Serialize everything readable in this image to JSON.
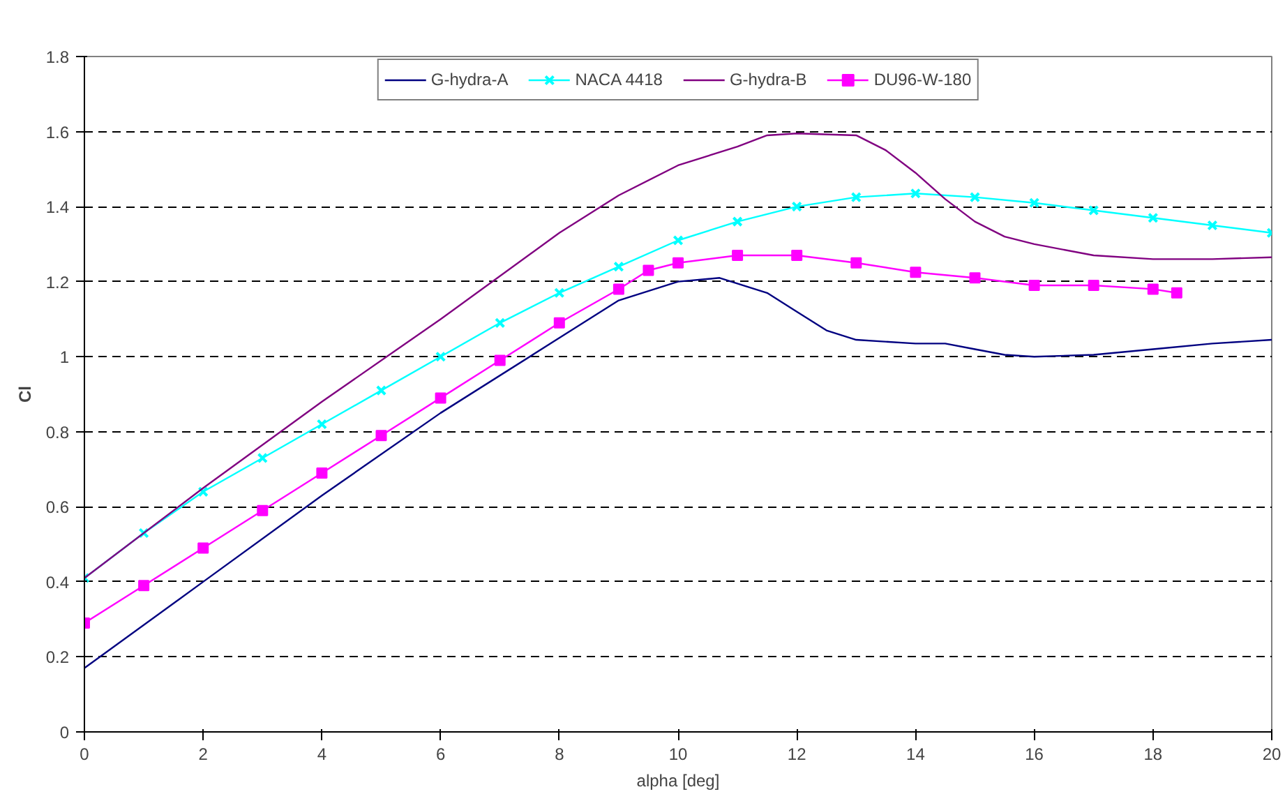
{
  "chart_data": {
    "type": "line",
    "xlabel": "alpha [deg]",
    "ylabel": "Cl",
    "xlim": [
      0,
      20
    ],
    "xticks": [
      0,
      2,
      4,
      6,
      8,
      10,
      12,
      14,
      16,
      18,
      20
    ],
    "ylim": [
      0,
      1.8
    ],
    "yticks": [
      0,
      0.2,
      0.4,
      0.6,
      0.8,
      1,
      1.2,
      1.4,
      1.6,
      1.8
    ],
    "grid": "y",
    "legend": "top",
    "series": [
      {
        "name": "G-hydra-A",
        "color": "#000080",
        "marker": "none",
        "x": [
          0,
          2,
          4,
          6,
          8,
          9,
          10,
          10.7,
          11.5,
          12,
          12.5,
          13,
          14,
          14.5,
          15,
          15.5,
          16,
          17,
          18,
          19,
          20
        ],
        "values": [
          0.17,
          0.4,
          0.63,
          0.85,
          1.05,
          1.15,
          1.2,
          1.21,
          1.17,
          1.12,
          1.07,
          1.045,
          1.035,
          1.035,
          1.02,
          1.005,
          1.0,
          1.005,
          1.02,
          1.035,
          1.045
        ]
      },
      {
        "name": "NACA 4418",
        "color": "#00ffff",
        "marker": "cross",
        "x": [
          0,
          1,
          2,
          3,
          4,
          5,
          6,
          7,
          8,
          9,
          10,
          11,
          12,
          13,
          14,
          15,
          16,
          17,
          18,
          19,
          20
        ],
        "values": [
          0.41,
          0.53,
          0.64,
          0.73,
          0.82,
          0.91,
          1.0,
          1.09,
          1.17,
          1.24,
          1.31,
          1.36,
          1.4,
          1.425,
          1.435,
          1.425,
          1.41,
          1.39,
          1.37,
          1.35,
          1.33
        ]
      },
      {
        "name": "G-hydra-B",
        "color": "#800080",
        "marker": "none",
        "x": [
          0,
          2,
          4,
          6,
          8,
          9,
          10,
          11,
          11.5,
          12,
          13,
          13.5,
          14,
          14.5,
          15,
          15.5,
          16,
          17,
          18,
          19,
          20
        ],
        "values": [
          0.41,
          0.65,
          0.88,
          1.1,
          1.33,
          1.43,
          1.51,
          1.56,
          1.59,
          1.595,
          1.59,
          1.55,
          1.49,
          1.42,
          1.36,
          1.32,
          1.3,
          1.27,
          1.26,
          1.26,
          1.265
        ]
      },
      {
        "name": "DU96-W-180",
        "color": "#ff00ff",
        "marker": "square",
        "x": [
          0,
          1,
          2,
          3,
          4,
          5,
          6,
          7,
          8,
          9,
          9.5,
          10,
          11,
          12,
          13,
          14,
          15,
          16,
          17,
          18,
          18.4
        ],
        "values": [
          0.29,
          0.39,
          0.49,
          0.59,
          0.69,
          0.79,
          0.89,
          0.99,
          1.09,
          1.18,
          1.23,
          1.25,
          1.27,
          1.27,
          1.25,
          1.225,
          1.21,
          1.19,
          1.19,
          1.18,
          1.17
        ]
      }
    ]
  }
}
